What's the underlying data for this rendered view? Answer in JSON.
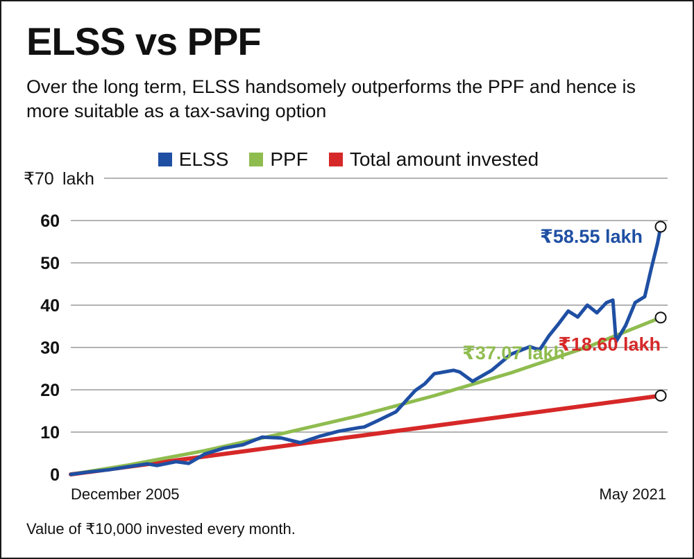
{
  "title": "ELSS vs PPF",
  "subtitle": "Over the long term, ELSS handsomely outperforms the PPF and hence is more suitable as a tax-saving option",
  "footnote": "Value of ₹10,000 invested every month.",
  "colors": {
    "elss": "#1f4fa3",
    "ppf": "#8fbc4f",
    "invested": "#d62828",
    "grid": "#9a9a9a"
  },
  "chart_data": {
    "type": "line",
    "title": "ELSS vs PPF",
    "xlabel": "",
    "ylabel": "",
    "y_unit_label": "lakh",
    "ylim": [
      0,
      70
    ],
    "yticks": [
      {
        "value": 70,
        "label": "₹70"
      },
      {
        "value": 60,
        "label": "60"
      },
      {
        "value": 50,
        "label": "50"
      },
      {
        "value": 40,
        "label": "40"
      },
      {
        "value": 30,
        "label": "30"
      },
      {
        "value": 20,
        "label": "20"
      },
      {
        "value": 10,
        "label": "10"
      },
      {
        "value": 0,
        "label": "0"
      }
    ],
    "x_range": [
      "2005-12",
      "2021-05"
    ],
    "x_tick_labels": [
      "December 2005",
      "May 2021"
    ],
    "grid": "horizontal",
    "legend_position": "top-center",
    "series": [
      {
        "name": "ELSS",
        "color_key": "elss",
        "x": [
          "2005-12",
          "2006-06",
          "2006-12",
          "2007-06",
          "2007-12",
          "2008-03",
          "2008-09",
          "2009-01",
          "2009-06",
          "2009-12",
          "2010-06",
          "2010-12",
          "2011-06",
          "2011-12",
          "2012-06",
          "2012-12",
          "2013-06",
          "2013-08",
          "2013-12",
          "2014-06",
          "2014-12",
          "2015-03",
          "2015-06",
          "2015-09",
          "2015-12",
          "2016-02",
          "2016-06",
          "2016-12",
          "2017-06",
          "2017-12",
          "2018-03",
          "2018-06",
          "2018-09",
          "2018-12",
          "2019-03",
          "2019-06",
          "2019-09",
          "2019-12",
          "2020-02",
          "2020-03",
          "2020-06",
          "2020-09",
          "2020-12",
          "2021-02",
          "2021-04",
          "2021-05"
        ],
        "values": [
          0,
          0.6,
          1.1,
          1.8,
          2.5,
          2.1,
          3.0,
          2.6,
          4.8,
          6.2,
          7.0,
          8.8,
          8.6,
          7.5,
          9.0,
          10.2,
          11.0,
          11.2,
          12.6,
          14.8,
          19.8,
          21.4,
          23.8,
          24.2,
          24.6,
          24.2,
          22.0,
          24.6,
          28.4,
          30.2,
          29.4,
          32.8,
          35.6,
          38.6,
          37.2,
          40.0,
          38.2,
          40.6,
          41.2,
          31.4,
          35.2,
          40.6,
          42.0,
          48.5,
          54.6,
          58.55
        ]
      },
      {
        "name": "PPF",
        "color_key": "ppf",
        "x": [
          "2005-12",
          "2007-06",
          "2009-06",
          "2011-06",
          "2013-06",
          "2015-06",
          "2017-06",
          "2019-06",
          "2021-05"
        ],
        "values": [
          0,
          2.2,
          5.6,
          9.6,
          13.8,
          18.6,
          24.0,
          30.1,
          37.07
        ]
      },
      {
        "name": "Total amount invested",
        "color_key": "invested",
        "x": [
          "2005-12",
          "2021-05"
        ],
        "values": [
          0,
          18.6
        ]
      }
    ],
    "annotations": [
      {
        "text": "₹58.55 lakh",
        "color_key": "elss",
        "value": 58.55
      },
      {
        "text": "₹37.07 lakh",
        "color_key": "ppf",
        "value": 37.07
      },
      {
        "text": "₹18.60 lakh",
        "color_key": "invested",
        "value": 18.6
      }
    ]
  }
}
